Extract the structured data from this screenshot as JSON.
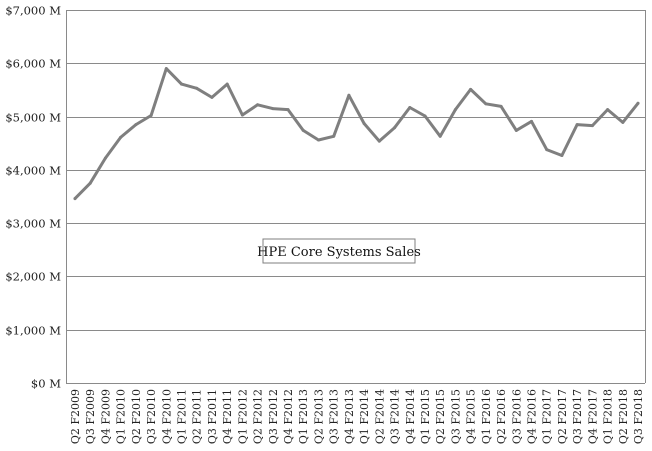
{
  "chart_data": {
    "type": "line",
    "title": "",
    "xlabel": "",
    "ylabel": "",
    "ylim": [
      0,
      7000
    ],
    "yticks": [
      0,
      1000,
      2000,
      3000,
      4000,
      5000,
      6000,
      7000
    ],
    "ytick_labels": [
      "$0 M",
      "$1,000 M",
      "$2,000 M",
      "$3,000 M",
      "$4,000 M",
      "$5,000 M",
      "$6,000 M",
      "$7,000 M"
    ],
    "grid": true,
    "legend_position": "center",
    "categories": [
      "Q2 F2009",
      "Q3 F2009",
      "Q4 F2009",
      "Q1 F2010",
      "Q2 F2010",
      "Q3 F2010",
      "Q4 F2010",
      "Q1 F2011",
      "Q2 F2011",
      "Q3 F2011",
      "Q4 F2011",
      "Q1 F2012",
      "Q2 F2012",
      "Q3 F2012",
      "Q4 F2012",
      "Q1 F2013",
      "Q2 F2013",
      "Q3 F2013",
      "Q4 F2013",
      "Q1 F2014",
      "Q2 F2014",
      "Q3 F2014",
      "Q4 F2014",
      "Q1 F2015",
      "Q2 F2015",
      "Q3 F2015",
      "Q4 F2015",
      "Q1 F2016",
      "Q2 F2016",
      "Q3 F2016",
      "Q4 F2016",
      "Q1 F2017",
      "Q2 F2017",
      "Q3 F2017",
      "Q4 F2017",
      "Q1 F2018",
      "Q2 F2018",
      "Q3 F2018"
    ],
    "series": [
      {
        "name": "HPE Core Systems Sales",
        "color": "#7f7f7f",
        "values": [
          3460,
          3750,
          4220,
          4610,
          4850,
          5020,
          5900,
          5610,
          5530,
          5360,
          5610,
          5030,
          5220,
          5150,
          5130,
          4740,
          4560,
          4630,
          5400,
          4870,
          4540,
          4790,
          5170,
          5010,
          4630,
          5130,
          5510,
          5240,
          5190,
          4740,
          4910,
          4380,
          4270,
          4850,
          4830,
          5130,
          4890,
          5250
        ]
      }
    ]
  }
}
